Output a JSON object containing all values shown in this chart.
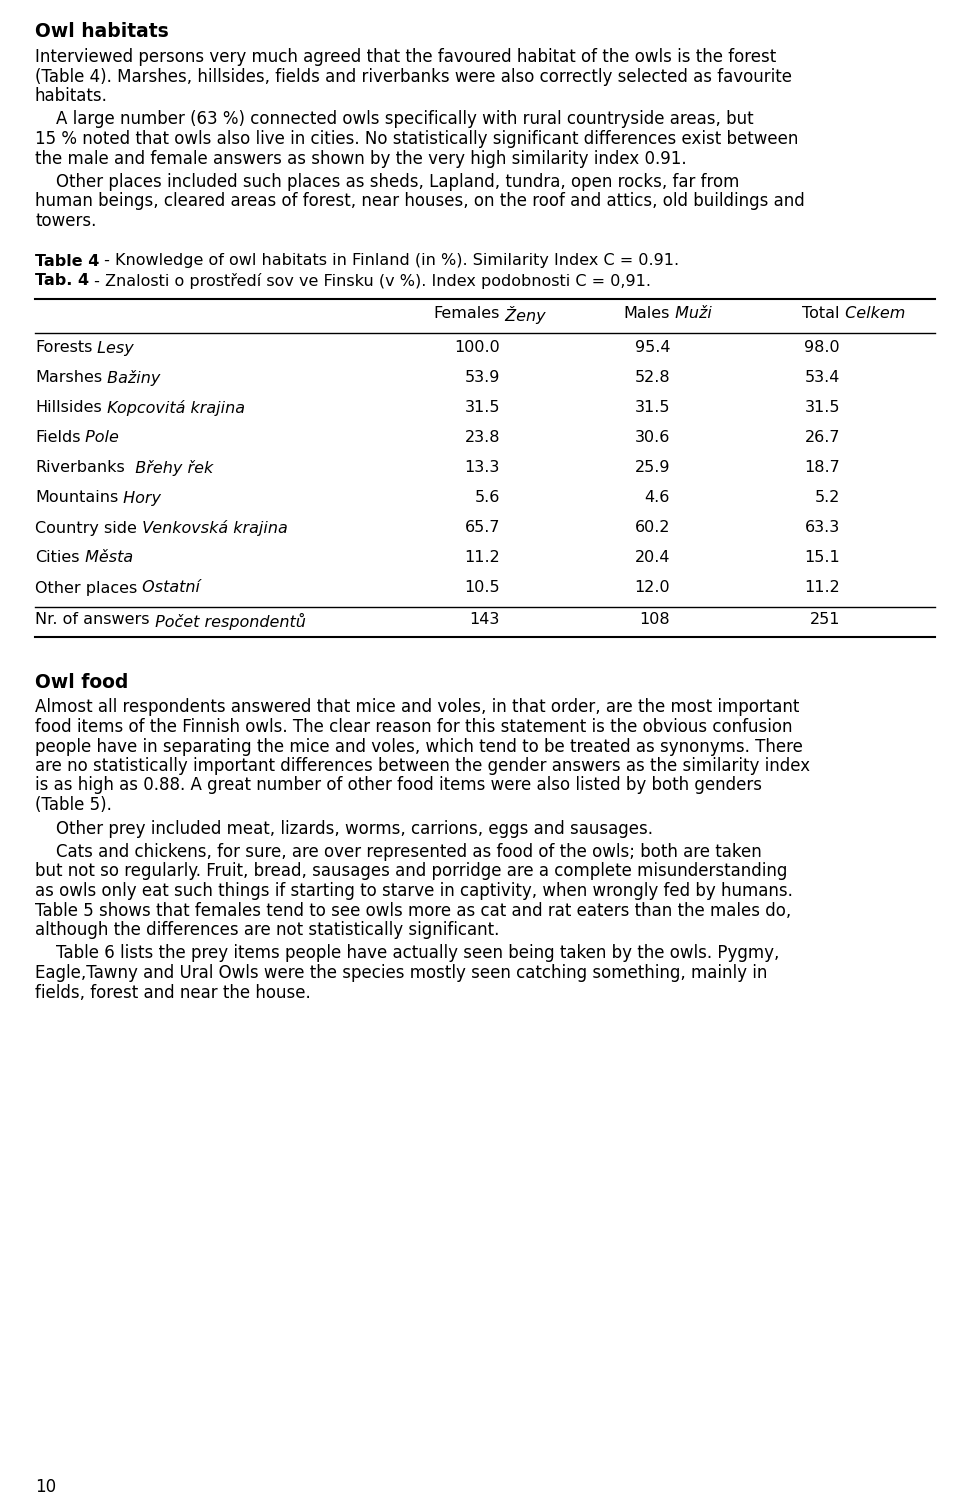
{
  "bg_color": "#ffffff",
  "text_color": "#000000",
  "title1": "Owl habitats",
  "para1_lines": [
    "Interviewed persons very much agreed that the favoured habitat of the owls is the forest",
    "(Table 4). Marshes, hillsides, fields and riverbanks were also correctly selected as favourite",
    "habitats."
  ],
  "para2_lines": [
    "    A large number (63 %) connected owls specifically with rural countryside areas, but",
    "15 % noted that owls also live in cities. No statistically significant differences exist between",
    "the male and female answers as shown by the very high similarity index 0.91."
  ],
  "para3_lines": [
    "    Other places included such places as sheds, Lapland, tundra, open rocks, far from",
    "human beings, cleared areas of forest, near houses, on the roof and attics, old buildings and",
    "towers."
  ],
  "table_caption1_bold": "Table 4",
  "table_caption1_rest": " - Knowledge of owl habitats in Finland (in %). Similarity Index C = 0.91.",
  "table_caption2_bold": "Tab. 4",
  "table_caption2_rest": " - Znalosti o prostředí sov ve Finsku (v %). Index podobnosti C = 0,91.",
  "rows": [
    [
      "Forests",
      " Lesy",
      "100.0",
      "95.4",
      "98.0"
    ],
    [
      "Marshes",
      " Bažiny",
      "53.9",
      "52.8",
      "53.4"
    ],
    [
      "Hillsides",
      " Kopcovitá krajina",
      "31.5",
      "31.5",
      "31.5"
    ],
    [
      "Fields",
      " Pole",
      "23.8",
      "30.6",
      "26.7"
    ],
    [
      "Riverbanks",
      "  Břehy řek",
      "13.3",
      "25.9",
      "18.7"
    ],
    [
      "Mountains",
      " Hory",
      "5.6",
      "4.6",
      "5.2"
    ],
    [
      "Country side",
      " Venkovská krajina",
      "65.7",
      "60.2",
      "63.3"
    ],
    [
      "Cities",
      " Města",
      "11.2",
      "20.4",
      "15.1"
    ],
    [
      "Other places",
      " Ostatní",
      "10.5",
      "12.0",
      "11.2"
    ]
  ],
  "last_row": [
    "Nr. of answers",
    " Počet respondentů",
    "143",
    "108",
    "251"
  ],
  "title2": "Owl food",
  "para4_lines": [
    "Almost all respondents answered that mice and voles, in that order, are the most important",
    "food items of the Finnish owls. The clear reason for this statement is the obvious confusion",
    "people have in separating the mice and voles, which tend to be treated as synonyms. There",
    "are no statistically important differences between the gender answers as the similarity index",
    "is as high as 0.88. A great number of other food items were also listed by both genders",
    "(Table 5)."
  ],
  "para5_lines": [
    "    Other prey included meat, lizards, worms, carrions, eggs and sausages."
  ],
  "para6_lines": [
    "    Cats and chickens, for sure, are over represented as food of the owls; both are taken",
    "but not so regularly. Fruit, bread, sausages and porridge are a complete misunderstanding",
    "as owls only eat such things if starting to starve in captivity, when wrongly fed by humans.",
    "Table 5 shows that females tend to see owls more as cat and rat eaters than the males do,",
    "although the differences are not statistically significant."
  ],
  "para7_lines": [
    "    Table 6 lists the prey items people have actually seen being taken by the owls. Pygmy,",
    "Eagle,Tawny and Ural Owls were the species mostly seen catching something, mainly in",
    "fields, forest and near the house."
  ],
  "page_num": "10",
  "col_headers_normal": [
    "Females",
    "Males",
    "Total"
  ],
  "col_headers_italic": [
    " Ženy",
    " Muži",
    " Celkem"
  ]
}
